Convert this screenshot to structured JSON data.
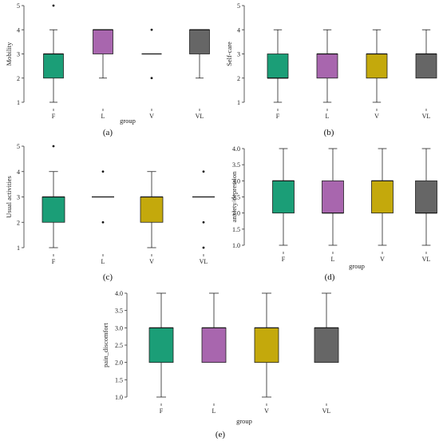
{
  "chart_data": [
    {
      "type": "box",
      "panel_label": "(a)",
      "xlabel": "group",
      "ylabel": "Mobility",
      "categories": [
        "F",
        "L",
        "V",
        "VL"
      ],
      "ylim": [
        1,
        5
      ],
      "yticks": [
        "1",
        "2",
        "3",
        "4",
        "5"
      ],
      "colors": [
        "#1b9e77",
        "#a866ae",
        "#c4a90c",
        "#666666"
      ],
      "boxes": [
        {
          "min": 1,
          "q1": 2,
          "median": 3,
          "q3": 3,
          "max": 4,
          "outliers": [
            5
          ]
        },
        {
          "min": 2,
          "q1": 3,
          "median": 4,
          "q3": 4,
          "max": 4,
          "outliers": []
        },
        {
          "min": 3,
          "q1": 3,
          "median": 3,
          "q3": 3,
          "max": 3,
          "outliers": [
            2,
            4
          ]
        },
        {
          "min": 2,
          "q1": 3,
          "median": 4,
          "q3": 4,
          "max": 4,
          "outliers": []
        }
      ]
    },
    {
      "type": "box",
      "panel_label": "(b)",
      "xlabel": "",
      "ylabel": "Self-care",
      "categories": [
        "F",
        "L",
        "V",
        "VL"
      ],
      "ylim": [
        1,
        5
      ],
      "yticks": [
        "1",
        "2",
        "3",
        "4",
        "5"
      ],
      "colors": [
        "#1b9e77",
        "#a866ae",
        "#c4a90c",
        "#666666"
      ],
      "boxes": [
        {
          "min": 1,
          "q1": 2,
          "median": 2,
          "q3": 3,
          "max": 4,
          "outliers": []
        },
        {
          "min": 1,
          "q1": 2,
          "median": 3,
          "q3": 3,
          "max": 4,
          "outliers": []
        },
        {
          "min": 1,
          "q1": 2,
          "median": 3,
          "q3": 3,
          "max": 4,
          "outliers": []
        },
        {
          "min": 2,
          "q1": 2,
          "median": 3,
          "q3": 3,
          "max": 4,
          "outliers": []
        }
      ]
    },
    {
      "type": "box",
      "panel_label": "(c)",
      "xlabel": "",
      "ylabel": "Usual activities",
      "categories": [
        "F",
        "L",
        "V",
        "VL"
      ],
      "ylim": [
        1,
        5
      ],
      "yticks": [
        "1",
        "2",
        "3",
        "4",
        "5"
      ],
      "colors": [
        "#1b9e77",
        "#a866ae",
        "#c4a90c",
        "#666666"
      ],
      "boxes": [
        {
          "min": 1,
          "q1": 2,
          "median": 3,
          "q3": 3,
          "max": 4,
          "outliers": [
            5
          ]
        },
        {
          "min": 3,
          "q1": 3,
          "median": 3,
          "q3": 3,
          "max": 3,
          "outliers": [
            2,
            4
          ]
        },
        {
          "min": 1,
          "q1": 2,
          "median": 3,
          "q3": 3,
          "max": 4,
          "outliers": []
        },
        {
          "min": 3,
          "q1": 3,
          "median": 3,
          "q3": 3,
          "max": 3,
          "outliers": [
            1,
            2,
            4
          ]
        }
      ]
    },
    {
      "type": "box",
      "panel_label": "(d)",
      "xlabel": "group",
      "ylabel": "anxiety/depression",
      "categories": [
        "F",
        "L",
        "V",
        "VL"
      ],
      "ylim": [
        1.0,
        4.0
      ],
      "yticks": [
        "1.0",
        "1.5",
        "2.0",
        "2.5",
        "3.0",
        "3.5",
        "4.0"
      ],
      "colors": [
        "#1b9e77",
        "#a866ae",
        "#c4a90c",
        "#666666"
      ],
      "boxes": [
        {
          "min": 1,
          "q1": 2,
          "median": 3,
          "q3": 3,
          "max": 4,
          "outliers": []
        },
        {
          "min": 1,
          "q1": 2,
          "median": 2,
          "q3": 3,
          "max": 4,
          "outliers": []
        },
        {
          "min": 1,
          "q1": 2,
          "median": 3,
          "q3": 3,
          "max": 4,
          "outliers": []
        },
        {
          "min": 1,
          "q1": 2,
          "median": 2,
          "q3": 3,
          "max": 4,
          "outliers": []
        }
      ]
    },
    {
      "type": "box",
      "panel_label": "(e)",
      "xlabel": "group",
      "ylabel": "pain_discomfort",
      "categories": [
        "F",
        "L",
        "V",
        "VL"
      ],
      "ylim": [
        1.0,
        4.0
      ],
      "yticks": [
        "1.0",
        "1.5",
        "2.0",
        "2.5",
        "3.0",
        "3.5",
        "4.0"
      ],
      "colors": [
        "#1b9e77",
        "#a866ae",
        "#c4a90c",
        "#666666"
      ],
      "boxes": [
        {
          "min": 1,
          "q1": 2,
          "median": 3,
          "q3": 3,
          "max": 4,
          "outliers": []
        },
        {
          "min": 2,
          "q1": 2,
          "median": 3,
          "q3": 3,
          "max": 4,
          "outliers": []
        },
        {
          "min": 1,
          "q1": 2,
          "median": 3,
          "q3": 3,
          "max": 4,
          "outliers": []
        },
        {
          "min": 2,
          "q1": 2,
          "median": 3,
          "q3": 3,
          "max": 4,
          "outliers": []
        }
      ]
    }
  ]
}
